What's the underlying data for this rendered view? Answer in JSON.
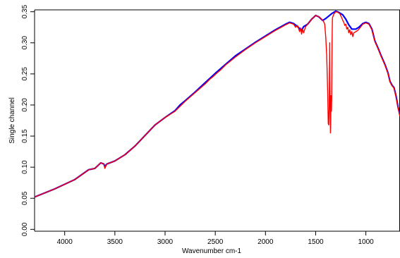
{
  "chart_data": {
    "type": "line",
    "title": "",
    "xlabel": "Wavenumber cm-1",
    "ylabel": "Single channel",
    "xlim": [
      4300,
      660
    ],
    "ylim": [
      -0.003,
      0.353
    ],
    "x_reversed": true,
    "grid": false,
    "legend": "none",
    "frame": "top-left-right",
    "xticks": [
      4000,
      3500,
      3000,
      2500,
      2000,
      1500,
      1000
    ],
    "xtick_labels": [
      "4000",
      "3500",
      "3000",
      "2500",
      "2000",
      "1500",
      "1000"
    ],
    "yticks": [
      0.0,
      0.05,
      0.1,
      0.15,
      0.2,
      0.25,
      0.3,
      0.35
    ],
    "ytick_labels": [
      "0.00",
      "0.05",
      "0.10",
      "0.15",
      "0.20",
      "0.25",
      "0.30",
      "0.35"
    ],
    "series": [
      {
        "color": "#0000ff",
        "points": [
          [
            4300,
            0.052
          ],
          [
            4100,
            0.065
          ],
          [
            3900,
            0.08
          ],
          [
            3760,
            0.096
          ],
          [
            3700,
            0.098
          ],
          [
            3640,
            0.107
          ],
          [
            3610,
            0.105
          ],
          [
            3600,
            0.101
          ],
          [
            3580,
            0.105
          ],
          [
            3500,
            0.11
          ],
          [
            3400,
            0.12
          ],
          [
            3300,
            0.134
          ],
          [
            3200,
            0.151
          ],
          [
            3100,
            0.168
          ],
          [
            3000,
            0.18
          ],
          [
            2900,
            0.191
          ],
          [
            2850,
            0.2
          ],
          [
            2800,
            0.207
          ],
          [
            2700,
            0.221
          ],
          [
            2600,
            0.236
          ],
          [
            2500,
            0.251
          ],
          [
            2400,
            0.265
          ],
          [
            2300,
            0.279
          ],
          [
            2200,
            0.29
          ],
          [
            2100,
            0.301
          ],
          [
            2000,
            0.311
          ],
          [
            1900,
            0.321
          ],
          [
            1800,
            0.33
          ],
          [
            1760,
            0.333
          ],
          [
            1720,
            0.331
          ],
          [
            1680,
            0.326
          ],
          [
            1640,
            0.32
          ],
          [
            1620,
            0.326
          ],
          [
            1580,
            0.33
          ],
          [
            1540,
            0.338
          ],
          [
            1500,
            0.344
          ],
          [
            1470,
            0.342
          ],
          [
            1430,
            0.336
          ],
          [
            1400,
            0.339
          ],
          [
            1370,
            0.343
          ],
          [
            1340,
            0.347
          ],
          [
            1300,
            0.351
          ],
          [
            1270,
            0.349
          ],
          [
            1230,
            0.345
          ],
          [
            1200,
            0.338
          ],
          [
            1170,
            0.329
          ],
          [
            1140,
            0.322
          ],
          [
            1100,
            0.322
          ],
          [
            1070,
            0.325
          ],
          [
            1030,
            0.331
          ],
          [
            1000,
            0.333
          ],
          [
            970,
            0.331
          ],
          [
            940,
            0.322
          ],
          [
            910,
            0.303
          ],
          [
            880,
            0.292
          ],
          [
            850,
            0.28
          ],
          [
            810,
            0.265
          ],
          [
            780,
            0.252
          ],
          [
            760,
            0.238
          ],
          [
            740,
            0.232
          ],
          [
            720,
            0.228
          ],
          [
            700,
            0.215
          ],
          [
            680,
            0.197
          ],
          [
            660,
            0.183
          ]
        ]
      },
      {
        "color": "#ff0000",
        "points": [
          [
            4300,
            0.052
          ],
          [
            4100,
            0.065
          ],
          [
            3900,
            0.08
          ],
          [
            3760,
            0.096
          ],
          [
            3700,
            0.098
          ],
          [
            3640,
            0.107
          ],
          [
            3610,
            0.105
          ],
          [
            3600,
            0.098
          ],
          [
            3580,
            0.105
          ],
          [
            3500,
            0.11
          ],
          [
            3400,
            0.12
          ],
          [
            3300,
            0.134
          ],
          [
            3200,
            0.151
          ],
          [
            3100,
            0.168
          ],
          [
            3000,
            0.18
          ],
          [
            2900,
            0.19
          ],
          [
            2850,
            0.198
          ],
          [
            2800,
            0.206
          ],
          [
            2700,
            0.22
          ],
          [
            2600,
            0.234
          ],
          [
            2550,
            0.242
          ],
          [
            2520,
            0.246
          ],
          [
            2500,
            0.249
          ],
          [
            2480,
            0.252
          ],
          [
            2450,
            0.256
          ],
          [
            2400,
            0.264
          ],
          [
            2300,
            0.277
          ],
          [
            2200,
            0.289
          ],
          [
            2100,
            0.3
          ],
          [
            2000,
            0.31
          ],
          [
            1900,
            0.32
          ],
          [
            1800,
            0.329
          ],
          [
            1760,
            0.332
          ],
          [
            1720,
            0.33
          ],
          [
            1700,
            0.325
          ],
          [
            1680,
            0.328
          ],
          [
            1660,
            0.318
          ],
          [
            1650,
            0.324
          ],
          [
            1640,
            0.314
          ],
          [
            1630,
            0.322
          ],
          [
            1620,
            0.316
          ],
          [
            1600,
            0.326
          ],
          [
            1580,
            0.33
          ],
          [
            1540,
            0.338
          ],
          [
            1500,
            0.344
          ],
          [
            1470,
            0.342
          ],
          [
            1440,
            0.338
          ],
          [
            1420,
            0.334
          ],
          [
            1410,
            0.33
          ],
          [
            1400,
            0.31
          ],
          [
            1390,
            0.28
          ],
          [
            1380,
            0.22
          ],
          [
            1375,
            0.17
          ],
          [
            1370,
            0.168
          ],
          [
            1365,
            0.2
          ],
          [
            1362,
            0.26
          ],
          [
            1360,
            0.3
          ],
          [
            1358,
            0.24
          ],
          [
            1355,
            0.19
          ],
          [
            1353,
            0.155
          ],
          [
            1350,
            0.17
          ],
          [
            1347,
            0.215
          ],
          [
            1343,
            0.19
          ],
          [
            1340,
            0.21
          ],
          [
            1337,
            0.3
          ],
          [
            1333,
            0.34
          ],
          [
            1320,
            0.346
          ],
          [
            1300,
            0.35
          ],
          [
            1280,
            0.349
          ],
          [
            1260,
            0.347
          ],
          [
            1240,
            0.34
          ],
          [
            1230,
            0.336
          ],
          [
            1220,
            0.333
          ],
          [
            1210,
            0.328
          ],
          [
            1200,
            0.33
          ],
          [
            1190,
            0.322
          ],
          [
            1180,
            0.325
          ],
          [
            1170,
            0.316
          ],
          [
            1160,
            0.321
          ],
          [
            1150,
            0.313
          ],
          [
            1140,
            0.318
          ],
          [
            1130,
            0.31
          ],
          [
            1120,
            0.316
          ],
          [
            1100,
            0.318
          ],
          [
            1080,
            0.32
          ],
          [
            1060,
            0.324
          ],
          [
            1030,
            0.33
          ],
          [
            1000,
            0.332
          ],
          [
            970,
            0.33
          ],
          [
            940,
            0.321
          ],
          [
            910,
            0.302
          ],
          [
            880,
            0.291
          ],
          [
            850,
            0.279
          ],
          [
            810,
            0.264
          ],
          [
            780,
            0.251
          ],
          [
            760,
            0.237
          ],
          [
            740,
            0.231
          ],
          [
            720,
            0.227
          ],
          [
            700,
            0.213
          ],
          [
            680,
            0.195
          ],
          [
            660,
            0.182
          ]
        ]
      }
    ]
  }
}
